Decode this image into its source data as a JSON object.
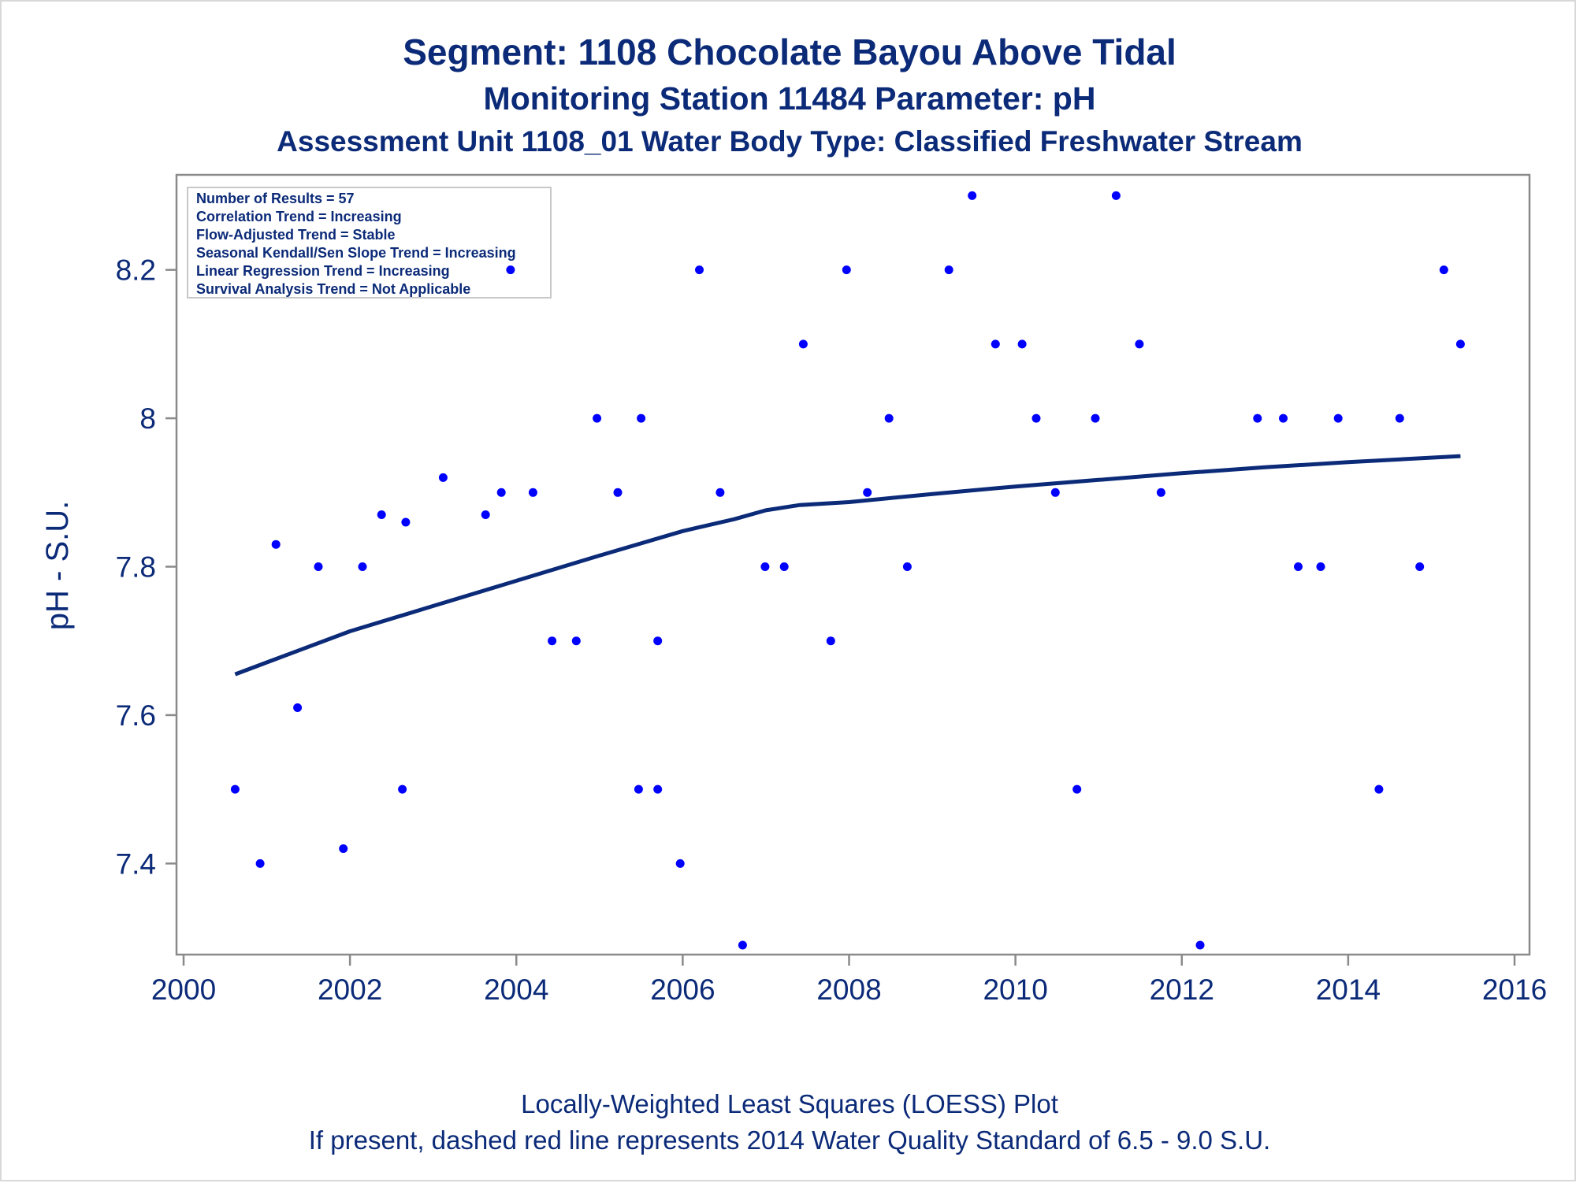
{
  "chart_data": {
    "type": "scatter",
    "title": "Segment: 1108  Chocolate Bayou Above Tidal",
    "subtitle": "Monitoring Station 11484 Parameter: pH",
    "subtitle2": "Assessment Unit 1108_01   Water Body Type: Classified Freshwater Stream",
    "xlabel": "",
    "ylabel": "pH - S.U.",
    "xlim": [
      2000,
      2016
    ],
    "ylim": [
      7.29,
      8.31
    ],
    "xticks": [
      "2000",
      "2002",
      "2004",
      "2006",
      "2008",
      "2010",
      "2012",
      "2014",
      "2016"
    ],
    "yticks": [
      "7.4",
      "7.6",
      "7.8",
      "8",
      "8.2"
    ],
    "grid": false,
    "footnotes": [
      "Locally-Weighted Least Squares (LOESS) Plot",
      "If present, dashed red line represents 2014 Water Quality Standard of 6.5 - 9.0 S.U."
    ],
    "stats": [
      "Number of Results = 57",
      "Correlation Trend = Increasing",
      "Flow-Adjusted Trend = Stable",
      "Seasonal Kendall/Sen Slope Trend = Increasing",
      "Linear Regression Trend = Increasing",
      "Survival Analysis Trend = Not Applicable"
    ],
    "colors": {
      "points": "#0000ff",
      "loess": "#0b2a78",
      "text": "#0b2a78",
      "frame": "#8a8a8a"
    },
    "series": [
      {
        "values": [
          [
            2000.62,
            7.5
          ],
          [
            2000.92,
            7.4
          ],
          [
            2001.11,
            7.83
          ],
          [
            2001.37,
            7.61
          ],
          [
            2001.62,
            7.8
          ],
          [
            2001.92,
            7.42
          ],
          [
            2002.15,
            7.8
          ],
          [
            2002.38,
            7.87
          ],
          [
            2002.63,
            7.5
          ],
          [
            2002.67,
            7.86
          ],
          [
            2003.12,
            7.92
          ],
          [
            2003.63,
            7.87
          ],
          [
            2003.82,
            7.9
          ],
          [
            2003.93,
            8.2
          ],
          [
            2004.2,
            7.9
          ],
          [
            2004.43,
            7.7
          ],
          [
            2004.72,
            7.7
          ],
          [
            2004.97,
            8.0
          ],
          [
            2005.22,
            7.9
          ],
          [
            2005.47,
            7.5
          ],
          [
            2005.5,
            8.0
          ],
          [
            2005.7,
            7.5
          ],
          [
            2005.7,
            7.7
          ],
          [
            2005.97,
            7.4
          ],
          [
            2006.2,
            8.2
          ],
          [
            2006.45,
            7.9
          ],
          [
            2006.72,
            7.29
          ],
          [
            2006.99,
            7.8
          ],
          [
            2007.22,
            7.8
          ],
          [
            2007.45,
            8.1
          ],
          [
            2007.78,
            7.7
          ],
          [
            2007.97,
            8.2
          ],
          [
            2008.22,
            7.9
          ],
          [
            2008.48,
            8.0
          ],
          [
            2008.7,
            7.8
          ],
          [
            2009.2,
            8.2
          ],
          [
            2009.48,
            8.3
          ],
          [
            2009.76,
            8.1
          ],
          [
            2010.08,
            8.1
          ],
          [
            2010.25,
            8.0
          ],
          [
            2010.48,
            7.9
          ],
          [
            2010.74,
            7.5
          ],
          [
            2010.96,
            8.0
          ],
          [
            2011.21,
            8.3
          ],
          [
            2011.49,
            8.1
          ],
          [
            2011.75,
            7.9
          ],
          [
            2012.22,
            7.29
          ],
          [
            2012.91,
            8.0
          ],
          [
            2013.22,
            8.0
          ],
          [
            2013.4,
            7.8
          ],
          [
            2013.67,
            7.8
          ],
          [
            2013.88,
            8.0
          ],
          [
            2014.37,
            7.5
          ],
          [
            2014.62,
            8.0
          ],
          [
            2014.86,
            7.8
          ],
          [
            2015.15,
            8.2
          ],
          [
            2015.35,
            8.1
          ]
        ]
      },
      {
        "type": "line",
        "values": [
          [
            2000.62,
            7.655
          ],
          [
            2001.0,
            7.671
          ],
          [
            2002.0,
            7.713
          ],
          [
            2003.0,
            7.747
          ],
          [
            2004.0,
            7.781
          ],
          [
            2005.0,
            7.815
          ],
          [
            2006.0,
            7.848
          ],
          [
            2006.62,
            7.864
          ],
          [
            2007.0,
            7.876
          ],
          [
            2007.4,
            7.883
          ],
          [
            2008.0,
            7.887
          ],
          [
            2009.0,
            7.898
          ],
          [
            2010.0,
            7.908
          ],
          [
            2011.0,
            7.917
          ],
          [
            2012.0,
            7.926
          ],
          [
            2013.0,
            7.934
          ],
          [
            2014.0,
            7.941
          ],
          [
            2015.35,
            7.949
          ]
        ]
      }
    ]
  }
}
